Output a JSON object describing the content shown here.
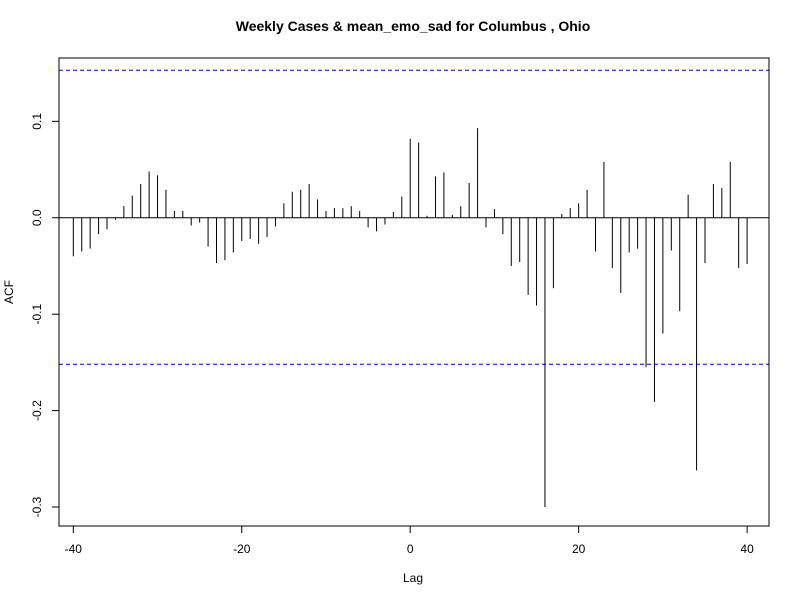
{
  "chart_data": {
    "type": "bar",
    "title": "Weekly Cases & mean_emo_sad for Columbus , Ohio",
    "xlabel": "Lag",
    "ylabel": "ACF",
    "xlim": [
      -41.7,
      42.6
    ],
    "ylim": [
      -0.3197,
      0.1657
    ],
    "x_ticks": [
      -40,
      -20,
      0,
      20,
      40
    ],
    "x_tick_labels": [
      "-40",
      "-20",
      "0",
      "20",
      "40"
    ],
    "y_ticks": [
      -0.3,
      -0.2,
      -0.1,
      0.0,
      0.1
    ],
    "y_tick_labels": [
      "-0.3",
      "-0.2",
      "-0.1",
      "0.0",
      "0.1"
    ],
    "confidence_bounds": [
      0.153,
      -0.152
    ],
    "colors": {
      "bars": "#000000",
      "confidence": "#0000cc",
      "zero_line": "#000000"
    },
    "x": [
      -40,
      -39,
      -38,
      -37,
      -36,
      -35,
      -34,
      -33,
      -32,
      -31,
      -30,
      -29,
      -28,
      -27,
      -26,
      -25,
      -24,
      -23,
      -22,
      -21,
      -20,
      -19,
      -18,
      -17,
      -16,
      -15,
      -14,
      -13,
      -12,
      -11,
      -10,
      -9,
      -8,
      -7,
      -6,
      -5,
      -4,
      -3,
      -2,
      -1,
      0,
      1,
      2,
      3,
      4,
      5,
      6,
      7,
      8,
      9,
      10,
      11,
      12,
      13,
      14,
      15,
      16,
      17,
      18,
      19,
      20,
      21,
      22,
      23,
      24,
      25,
      26,
      27,
      28,
      29,
      30,
      31,
      32,
      33,
      34,
      35,
      36,
      37,
      38,
      39,
      40
    ],
    "values": [
      -0.04,
      -0.035,
      -0.032,
      -0.017,
      -0.012,
      -0.002,
      0.012,
      0.023,
      0.035,
      0.048,
      0.044,
      0.029,
      0.007,
      0.007,
      -0.008,
      -0.005,
      -0.03,
      -0.047,
      -0.044,
      -0.036,
      -0.024,
      -0.022,
      -0.027,
      -0.02,
      -0.009,
      0.015,
      0.027,
      0.029,
      0.035,
      0.019,
      0.007,
      0.01,
      0.01,
      0.012,
      0.007,
      -0.01,
      -0.014,
      -0.007,
      0.006,
      0.022,
      0.082,
      0.078,
      0.002,
      0.043,
      0.047,
      0.003,
      0.012,
      0.036,
      0.093,
      -0.01,
      0.009,
      -0.017,
      -0.05,
      -0.046,
      -0.08,
      -0.091,
      -0.3,
      -0.073,
      0.004,
      0.01,
      0.015,
      0.029,
      -0.035,
      0.058,
      -0.052,
      -0.078,
      -0.036,
      -0.032,
      -0.155,
      -0.191,
      -0.12,
      -0.034,
      -0.097,
      0.024,
      -0.262,
      -0.047,
      0.035,
      0.031,
      0.058,
      -0.052,
      -0.048
    ]
  }
}
